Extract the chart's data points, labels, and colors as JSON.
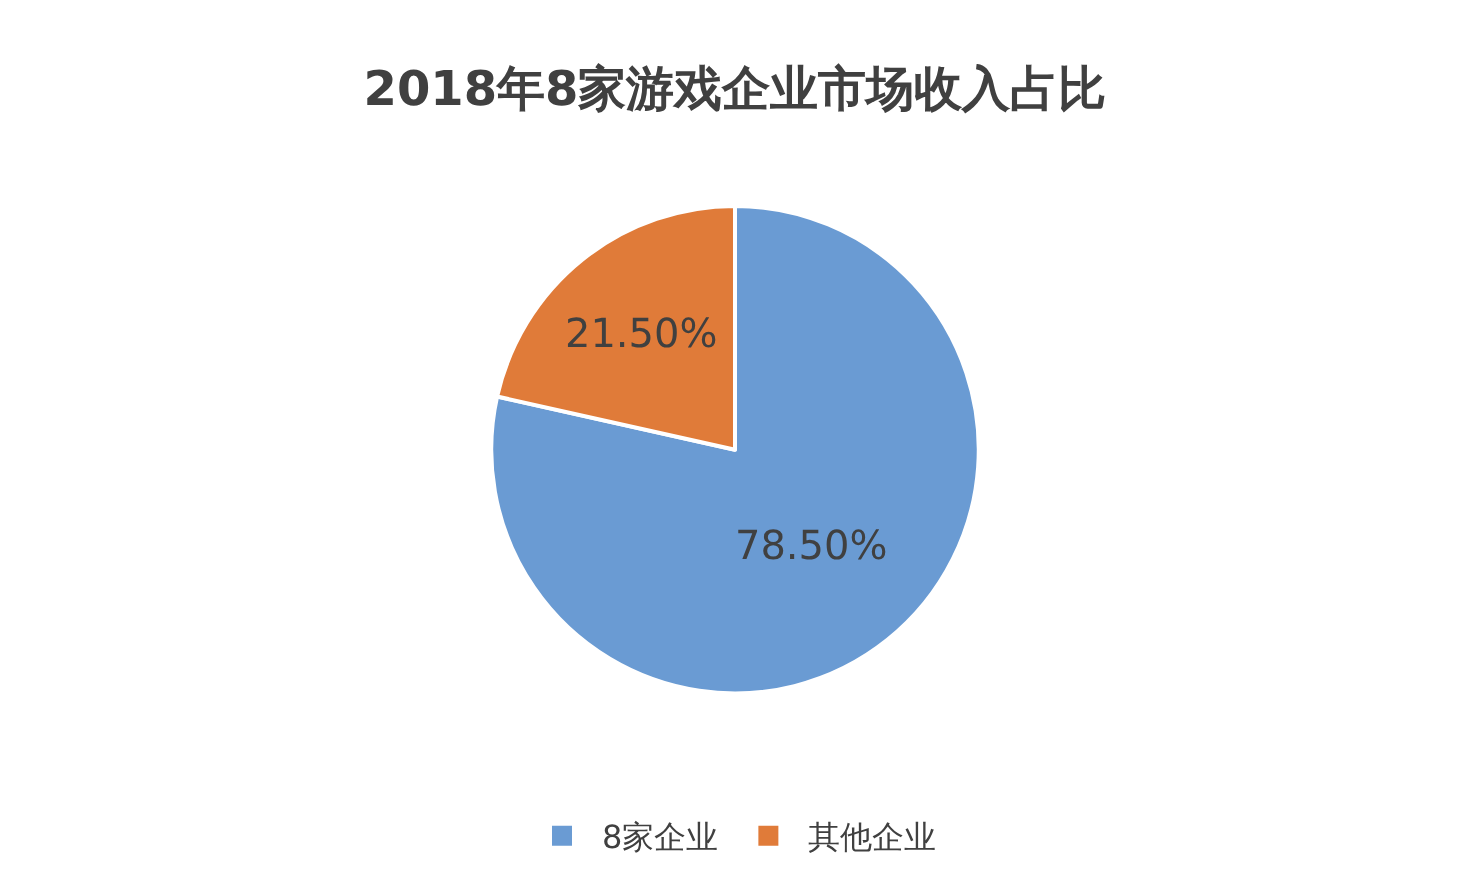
{
  "chart_data": {
    "type": "pie",
    "title": "2018年8家游戏企业市场收入占比",
    "categories": [
      "8家企业",
      "其他企业"
    ],
    "values": [
      78.5,
      21.5
    ],
    "value_labels": [
      "78.50%",
      "21.50%"
    ],
    "colors": [
      "#6a9bd3",
      "#e07b39"
    ],
    "legend": "bottom"
  }
}
